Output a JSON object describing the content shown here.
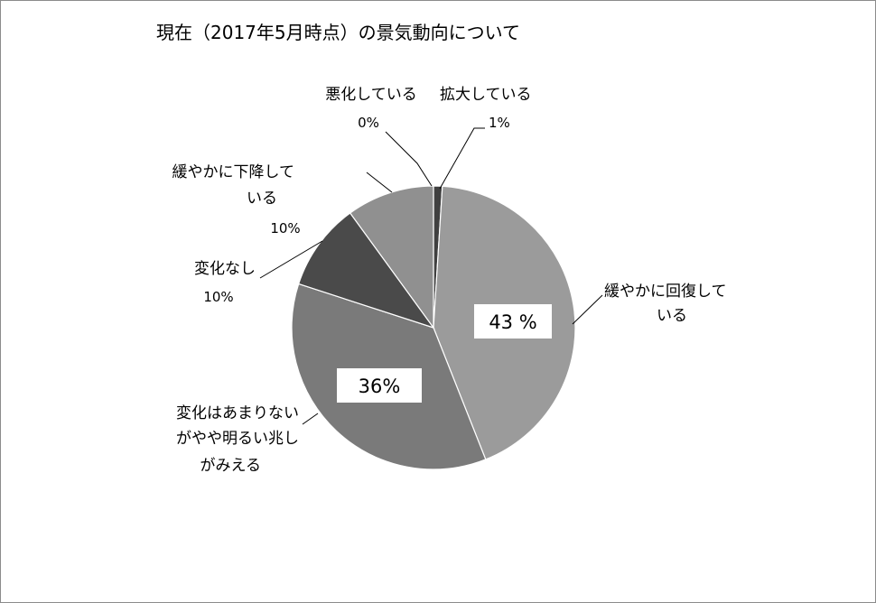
{
  "chart_data": {
    "type": "pie",
    "title": "現在（2017年5月時点）の景気動向について",
    "slices": [
      {
        "name_lines": [
          "拡大している"
        ],
        "value_label": "1%",
        "value": 1,
        "color": "#404040"
      },
      {
        "name_lines": [
          "緩やかに回復して",
          "いる"
        ],
        "value_label": "43 %",
        "value": 43,
        "color": "#9b9b9b"
      },
      {
        "name_lines": [
          "変化はあまりない",
          "がやや明るい兆し",
          "がみえる"
        ],
        "value_label": "36%",
        "value": 36,
        "color": "#7a7a7a"
      },
      {
        "name_lines": [
          "変化なし"
        ],
        "value_label": "10%",
        "value": 10,
        "color": "#4a4a4a"
      },
      {
        "name_lines": [
          "緩やかに下降して",
          "いる"
        ],
        "value_label": "10%",
        "value": 10,
        "color": "#909090"
      },
      {
        "name_lines": [
          "悪化している"
        ],
        "value_label": "0%",
        "value": 0,
        "color": "#cccccc"
      }
    ]
  }
}
